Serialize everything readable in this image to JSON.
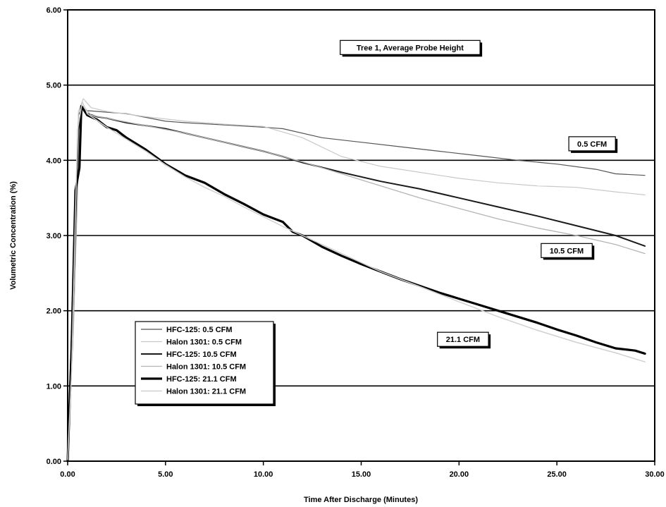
{
  "chart_data": {
    "type": "line",
    "title": "",
    "xlabel": "Time After Discharge (Minutes)",
    "ylabel": "Volumetric Concentration (%)",
    "xlim": [
      0,
      30
    ],
    "ylim": [
      0,
      6
    ],
    "x_ticks": [
      "0.00",
      "5.00",
      "10.00",
      "15.00",
      "20.00",
      "25.00",
      "30.00"
    ],
    "y_ticks": [
      "0.00",
      "1.00",
      "2.00",
      "3.00",
      "4.00",
      "5.00",
      "6.00"
    ],
    "grid": "horizontal",
    "legend_position": "lower-left",
    "series": [
      {
        "name": "HFC-125: 0.5 CFM",
        "color": "#555555",
        "width": 1.2,
        "points": [
          [
            0,
            0.25
          ],
          [
            0.3,
            2.5
          ],
          [
            0.55,
            4.6
          ],
          [
            0.7,
            4.68
          ],
          [
            1,
            4.66
          ],
          [
            2,
            4.64
          ],
          [
            3,
            4.62
          ],
          [
            4,
            4.57
          ],
          [
            5,
            4.52
          ],
          [
            6,
            4.5
          ],
          [
            8,
            4.47
          ],
          [
            10,
            4.44
          ],
          [
            11,
            4.42
          ],
          [
            13,
            4.3
          ],
          [
            15,
            4.24
          ],
          [
            17,
            4.18
          ],
          [
            19,
            4.12
          ],
          [
            21,
            4.06
          ],
          [
            23,
            4.0
          ],
          [
            25,
            3.95
          ],
          [
            27,
            3.88
          ],
          [
            28,
            3.82
          ],
          [
            29.5,
            3.8
          ]
        ]
      },
      {
        "name": "Halon 1301: 0.5 CFM",
        "color": "#c8c8c8",
        "width": 1.2,
        "points": [
          [
            0,
            0.1
          ],
          [
            0.3,
            2.0
          ],
          [
            0.55,
            4.65
          ],
          [
            0.8,
            4.82
          ],
          [
            1.2,
            4.7
          ],
          [
            2,
            4.65
          ],
          [
            4,
            4.58
          ],
          [
            6,
            4.52
          ],
          [
            8,
            4.48
          ],
          [
            10,
            4.45
          ],
          [
            12,
            4.3
          ],
          [
            14,
            4.05
          ],
          [
            16,
            3.92
          ],
          [
            18,
            3.84
          ],
          [
            20,
            3.76
          ],
          [
            22,
            3.7
          ],
          [
            24,
            3.66
          ],
          [
            26,
            3.64
          ],
          [
            28,
            3.58
          ],
          [
            29.5,
            3.54
          ]
        ]
      },
      {
        "name": "HFC-125: 10.5 CFM",
        "color": "#1a1a1a",
        "width": 2.0,
        "points": [
          [
            0,
            0.0
          ],
          [
            0.3,
            2.2
          ],
          [
            0.6,
            4.5
          ],
          [
            0.75,
            4.7
          ],
          [
            1,
            4.62
          ],
          [
            1.5,
            4.58
          ],
          [
            2,
            4.56
          ],
          [
            3,
            4.5
          ],
          [
            4,
            4.46
          ],
          [
            5,
            4.42
          ],
          [
            6,
            4.36
          ],
          [
            7,
            4.3
          ],
          [
            8,
            4.24
          ],
          [
            9,
            4.18
          ],
          [
            10,
            4.12
          ],
          [
            11,
            4.05
          ],
          [
            12,
            3.97
          ],
          [
            14,
            3.84
          ],
          [
            16,
            3.72
          ],
          [
            18,
            3.62
          ],
          [
            20,
            3.5
          ],
          [
            22,
            3.38
          ],
          [
            24,
            3.26
          ],
          [
            26,
            3.13
          ],
          [
            28,
            3.0
          ],
          [
            29.5,
            2.86
          ]
        ]
      },
      {
        "name": "Halon 1301: 10.5 CFM",
        "color": "#b4b4b4",
        "width": 1.3,
        "points": [
          [
            0,
            0.05
          ],
          [
            0.3,
            1.8
          ],
          [
            0.6,
            4.4
          ],
          [
            0.8,
            4.72
          ],
          [
            1.2,
            4.6
          ],
          [
            2,
            4.56
          ],
          [
            4,
            4.46
          ],
          [
            6,
            4.36
          ],
          [
            8,
            4.24
          ],
          [
            10,
            4.12
          ],
          [
            12,
            3.98
          ],
          [
            14,
            3.82
          ],
          [
            16,
            3.66
          ],
          [
            18,
            3.5
          ],
          [
            20,
            3.36
          ],
          [
            22,
            3.22
          ],
          [
            24,
            3.1
          ],
          [
            26,
            3.0
          ],
          [
            28,
            2.88
          ],
          [
            29.5,
            2.76
          ]
        ]
      },
      {
        "name": "HFC-125: 21.1 CFM",
        "color": "#000000",
        "width": 3.2,
        "points": [
          [
            0,
            0.0
          ],
          [
            0.2,
            1.5
          ],
          [
            0.4,
            3.6
          ],
          [
            0.6,
            3.9
          ],
          [
            0.7,
            4.72
          ],
          [
            1,
            4.6
          ],
          [
            1.5,
            4.54
          ],
          [
            2,
            4.44
          ],
          [
            2.5,
            4.4
          ],
          [
            3,
            4.3
          ],
          [
            4,
            4.14
          ],
          [
            5,
            3.95
          ],
          [
            6,
            3.8
          ],
          [
            7,
            3.7
          ],
          [
            8,
            3.55
          ],
          [
            9,
            3.42
          ],
          [
            10,
            3.28
          ],
          [
            11,
            3.18
          ],
          [
            11.5,
            3.05
          ],
          [
            12,
            3.0
          ],
          [
            13,
            2.85
          ],
          [
            14,
            2.73
          ],
          [
            15,
            2.62
          ],
          [
            16,
            2.52
          ],
          [
            17,
            2.42
          ],
          [
            18,
            2.33
          ],
          [
            19,
            2.24
          ],
          [
            20,
            2.16
          ],
          [
            21,
            2.08
          ],
          [
            22,
            2.0
          ],
          [
            23,
            1.92
          ],
          [
            24,
            1.84
          ],
          [
            25,
            1.75
          ],
          [
            26,
            1.67
          ],
          [
            27,
            1.58
          ],
          [
            28,
            1.5
          ],
          [
            29,
            1.47
          ],
          [
            29.5,
            1.43
          ]
        ]
      },
      {
        "name": "Halon 1301: 21.1 CFM",
        "color": "#d0d0d0",
        "width": 1.5,
        "points": [
          [
            0,
            0.02
          ],
          [
            0.2,
            1.2
          ],
          [
            0.5,
            4.4
          ],
          [
            0.75,
            4.78
          ],
          [
            1,
            4.62
          ],
          [
            2,
            4.44
          ],
          [
            3,
            4.28
          ],
          [
            4,
            4.12
          ],
          [
            5,
            3.94
          ],
          [
            6,
            3.78
          ],
          [
            7,
            3.64
          ],
          [
            8,
            3.52
          ],
          [
            9,
            3.38
          ],
          [
            10,
            3.25
          ],
          [
            11,
            3.12
          ],
          [
            12,
            3.0
          ],
          [
            14,
            2.76
          ],
          [
            16,
            2.52
          ],
          [
            18,
            2.32
          ],
          [
            20,
            2.12
          ],
          [
            22,
            1.92
          ],
          [
            24,
            1.74
          ],
          [
            26,
            1.58
          ],
          [
            28,
            1.44
          ],
          [
            29.5,
            1.32
          ]
        ]
      }
    ],
    "annotations": [
      {
        "text": "Tree 1, Average Probe Height",
        "x": 17.5,
        "y": 5.5
      },
      {
        "text": "0.5 CFM",
        "x": 26.8,
        "y": 4.22
      },
      {
        "text": "10.5 CFM",
        "x": 25.5,
        "y": 2.8
      },
      {
        "text": "21.1 CFM",
        "x": 20.2,
        "y": 1.62
      }
    ]
  }
}
